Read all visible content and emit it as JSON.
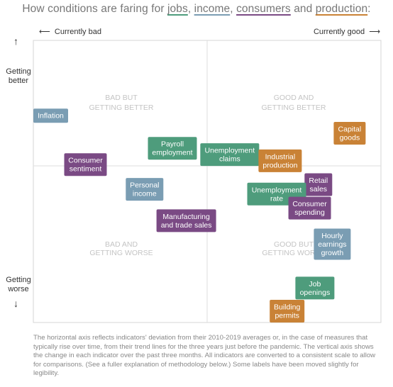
{
  "title": {
    "prefix": "How conditions are faring for ",
    "jobs": "jobs",
    "sep1": ", ",
    "income": "income",
    "sep2": ", ",
    "consumers": "consumers",
    "sep3": " and ",
    "production": "production",
    "suffix": ":"
  },
  "axes": {
    "left_label": "Currently bad",
    "right_label": "Currently good",
    "top_label": "Getting better",
    "bottom_label": "Getting worse",
    "arrow_left": "⟵",
    "arrow_right": "⟶",
    "arrow_up": "↑",
    "arrow_down": "↓"
  },
  "quadrants": {
    "top_left": [
      "BAD BUT",
      "GETTING BETTER"
    ],
    "top_right": [
      "GOOD AND",
      "GETTING BETTER"
    ],
    "bottom_left": [
      "BAD AND",
      "GETTING WORSE"
    ],
    "bottom_right": [
      "GOOD BUT",
      "GETTING WORSE"
    ]
  },
  "colors": {
    "jobs": "#4e9c7c",
    "income": "#7a9db3",
    "consumers": "#7a4a84",
    "production": "#c98236"
  },
  "chart_data": {
    "type": "scatter",
    "xlim": [
      -1,
      1
    ],
    "ylim": [
      -1,
      1
    ],
    "grid": false,
    "points": [
      {
        "label": [
          "Inflation"
        ],
        "category": "income",
        "x": -0.97,
        "y": 0.4
      },
      {
        "label": [
          "Capital",
          "goods"
        ],
        "category": "production",
        "x": 0.82,
        "y": 0.26
      },
      {
        "label": [
          "Payroll",
          "employment"
        ],
        "category": "jobs",
        "x": -0.2,
        "y": 0.14
      },
      {
        "label": [
          "Unemployment",
          "claims"
        ],
        "category": "jobs",
        "x": 0.13,
        "y": 0.09
      },
      {
        "label": [
          "Industrial",
          "production"
        ],
        "category": "production",
        "x": 0.42,
        "y": 0.04
      },
      {
        "label": [
          "Consumer",
          "sentiment"
        ],
        "category": "consumers",
        "x": -0.7,
        "y": 0.01
      },
      {
        "label": [
          "Retail",
          "sales"
        ],
        "category": "consumers",
        "x": 0.64,
        "y": -0.12
      },
      {
        "label": [
          "Personal",
          "income"
        ],
        "category": "income",
        "x": -0.36,
        "y": -0.15
      },
      {
        "label": [
          "Unemployment",
          "rate"
        ],
        "category": "jobs",
        "x": 0.4,
        "y": -0.18
      },
      {
        "label": [
          "Consumer",
          "spending"
        ],
        "category": "consumers",
        "x": 0.59,
        "y": -0.27
      },
      {
        "label": [
          "Manufacturing",
          "and trade sales"
        ],
        "category": "consumers",
        "x": -0.12,
        "y": -0.35
      },
      {
        "label": [
          "Hourly",
          "earnings",
          "growth"
        ],
        "category": "income",
        "x": 0.72,
        "y": -0.5
      },
      {
        "label": [
          "Job",
          "openings"
        ],
        "category": "jobs",
        "x": 0.62,
        "y": -0.78
      },
      {
        "label": [
          "Building",
          "permits"
        ],
        "category": "production",
        "x": 0.46,
        "y": -1.02
      }
    ]
  },
  "footnote": "The horizontal axis reflects indicators' deviation from their 2010-2019 averages or, in the case of measures that typically rise over time, from their trend lines for the three years just before the pandemic. The vertical axis shows the change in each indicator over the past three months. All indicators are converted to a consistent scale to allow for comparisons. (See a fuller explanation of methodology below.) Some labels have been moved slightly for legibility."
}
